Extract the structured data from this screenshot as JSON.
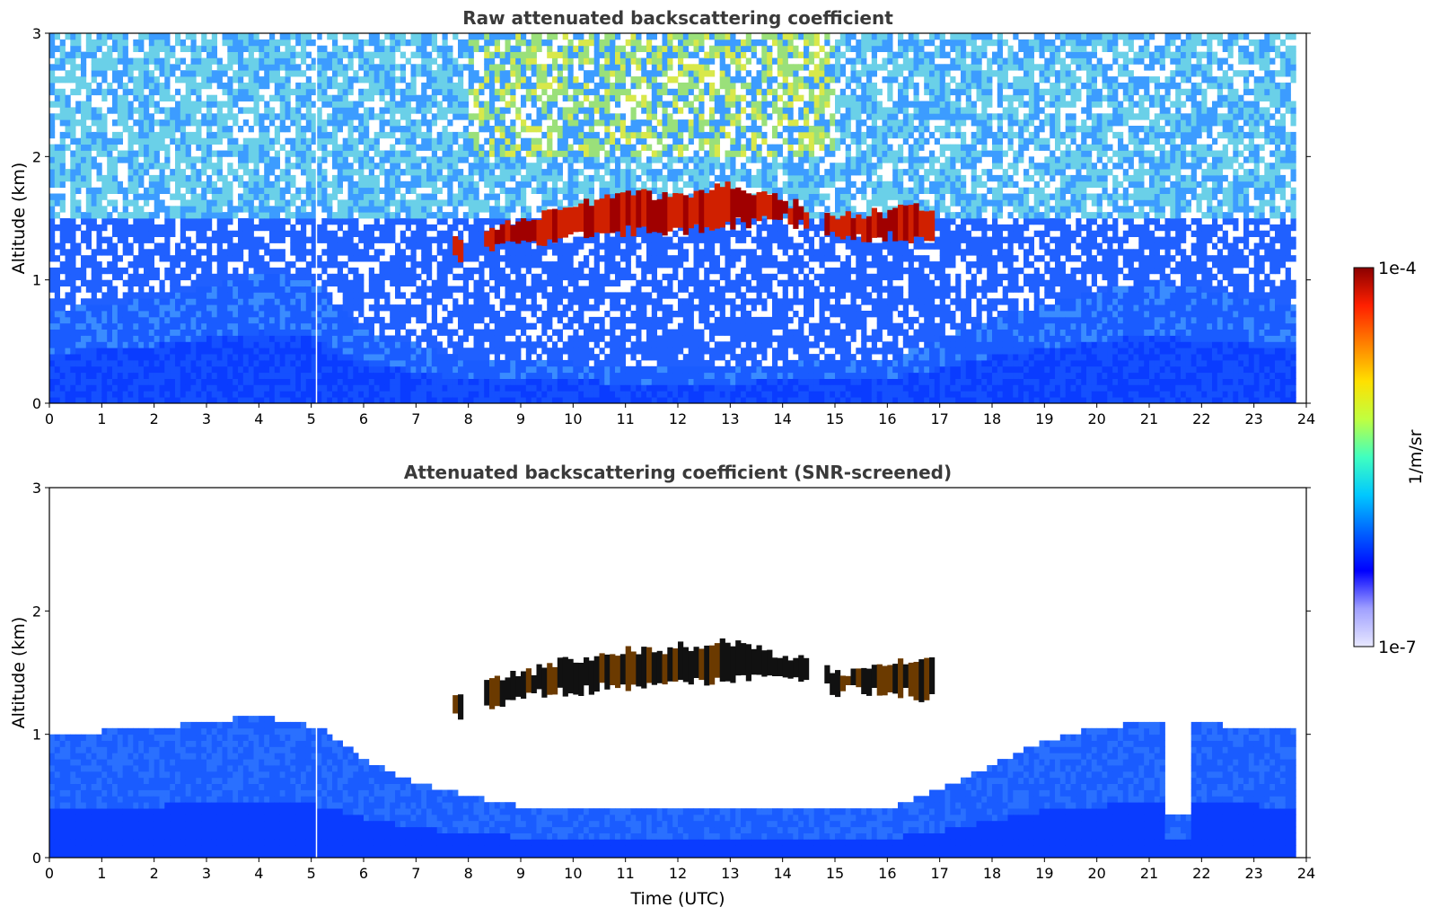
{
  "chart_data": [
    {
      "type": "heatmap",
      "title": "Raw attenuated backscattering coefficient",
      "xlabel": "",
      "ylabel": "Altitude (km)",
      "xlim": [
        0,
        24
      ],
      "ylim": [
        0,
        3
      ],
      "x_ticks": [
        "0",
        "1",
        "2",
        "3",
        "4",
        "5",
        "6",
        "7",
        "8",
        "9",
        "10",
        "11",
        "12",
        "13",
        "14",
        "15",
        "16",
        "17",
        "18",
        "19",
        "20",
        "21",
        "22",
        "23",
        "24"
      ],
      "y_ticks": [
        "0",
        "1",
        "2",
        "3"
      ],
      "data_end_hour": 23.8,
      "gap_hour": 5.1,
      "boundary_layer_top_km": [
        {
          "t": 0,
          "z": 0.75
        },
        {
          "t": 2,
          "z": 0.85
        },
        {
          "t": 4,
          "z": 1.05
        },
        {
          "t": 5,
          "z": 1.0
        },
        {
          "t": 6,
          "z": 0.6
        },
        {
          "t": 8,
          "z": 0.35
        },
        {
          "t": 12,
          "z": 0.3
        },
        {
          "t": 16,
          "z": 0.35
        },
        {
          "t": 18,
          "z": 0.7
        },
        {
          "t": 21,
          "z": 1.0
        },
        {
          "t": 23.8,
          "z": 0.8
        }
      ],
      "cloud_layer": {
        "start_hour": 7.7,
        "end_hour": 16.8,
        "base_km": [
          {
            "t": 7.7,
            "z": 1.15
          },
          {
            "t": 9,
            "z": 1.3
          },
          {
            "t": 10,
            "z": 1.35
          },
          {
            "t": 11,
            "z": 1.4
          },
          {
            "t": 12,
            "z": 1.4
          },
          {
            "t": 13,
            "z": 1.45
          },
          {
            "t": 14,
            "z": 1.5
          },
          {
            "t": 15,
            "z": 1.35
          },
          {
            "t": 16,
            "z": 1.35
          },
          {
            "t": 16.8,
            "z": 1.3
          }
        ],
        "top_km": [
          {
            "t": 7.7,
            "z": 1.3
          },
          {
            "t": 9,
            "z": 1.5
          },
          {
            "t": 10,
            "z": 1.6
          },
          {
            "t": 11,
            "z": 1.68
          },
          {
            "t": 12,
            "z": 1.7
          },
          {
            "t": 13,
            "z": 1.75
          },
          {
            "t": 14,
            "z": 1.65
          },
          {
            "t": 15,
            "z": 1.5
          },
          {
            "t": 16,
            "z": 1.55
          },
          {
            "t": 16.8,
            "z": 1.6
          }
        ]
      }
    },
    {
      "type": "heatmap",
      "title": "Attenuated backscattering coefficient (SNR-screened)",
      "xlabel": "Time (UTC)",
      "ylabel": "Altitude (km)",
      "xlim": [
        0,
        24
      ],
      "ylim": [
        0,
        3
      ],
      "x_ticks": [
        "0",
        "1",
        "2",
        "3",
        "4",
        "5",
        "6",
        "7",
        "8",
        "9",
        "10",
        "11",
        "12",
        "13",
        "14",
        "15",
        "16",
        "17",
        "18",
        "19",
        "20",
        "21",
        "22",
        "23",
        "24"
      ],
      "y_ticks": [
        "0",
        "1",
        "2",
        "3"
      ],
      "data_end_hour": 23.8,
      "gap_hour": 5.1,
      "screened_clear_notch": {
        "start_hour": 21.3,
        "end_hour": 21.8,
        "min_km": 0.33
      },
      "valid_top_km": [
        {
          "t": 0,
          "z": 1.0
        },
        {
          "t": 2,
          "z": 1.05
        },
        {
          "t": 4,
          "z": 1.15
        },
        {
          "t": 5.2,
          "z": 1.05
        },
        {
          "t": 6,
          "z": 0.8
        },
        {
          "t": 7,
          "z": 0.6
        },
        {
          "t": 8,
          "z": 0.5
        },
        {
          "t": 9,
          "z": 0.42
        },
        {
          "t": 12,
          "z": 0.4
        },
        {
          "t": 15,
          "z": 0.42
        },
        {
          "t": 16,
          "z": 0.4
        },
        {
          "t": 17,
          "z": 0.55
        },
        {
          "t": 18,
          "z": 0.75
        },
        {
          "t": 19,
          "z": 0.95
        },
        {
          "t": 20,
          "z": 1.05
        },
        {
          "t": 21,
          "z": 1.1
        },
        {
          "t": 23.8,
          "z": 1.05
        }
      ]
    }
  ],
  "colorbar": {
    "label": "1/m/sr",
    "max_label": "1e-4",
    "min_label": "1e-7",
    "colors": [
      "#e8e8ff",
      "#a0a0ff",
      "#0000ff",
      "#0060ff",
      "#00c8ff",
      "#40ffc0",
      "#c0ff40",
      "#ffe000",
      "#ff8000",
      "#ff2000",
      "#8b0000"
    ]
  }
}
